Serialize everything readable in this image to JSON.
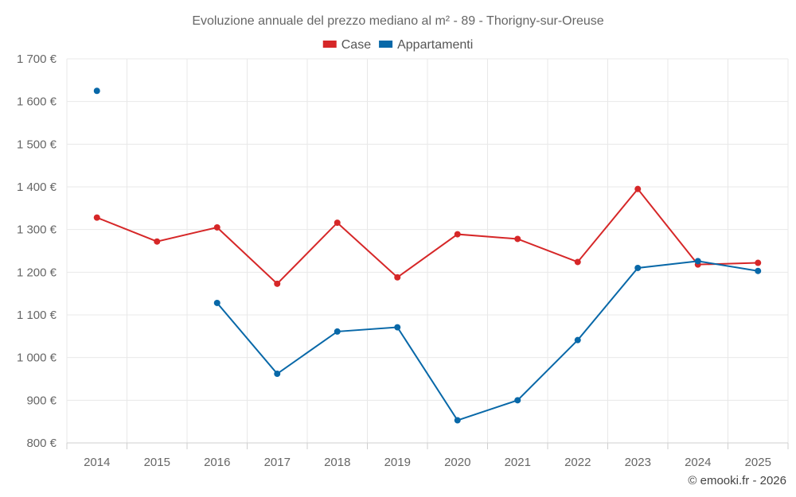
{
  "chart_data": {
    "type": "line",
    "title": "Evoluzione annuale del prezzo mediano al m² - 89 - Thorigny-sur-Oreuse",
    "categories": [
      "2014",
      "2015",
      "2016",
      "2017",
      "2018",
      "2019",
      "2020",
      "2021",
      "2022",
      "2023",
      "2024",
      "2025"
    ],
    "ylim": [
      800,
      1700
    ],
    "yticks": [
      800,
      900,
      1000,
      1100,
      1200,
      1300,
      1400,
      1500,
      1600,
      1700
    ],
    "ytick_labels": [
      "800 €",
      "900 €",
      "1 000 €",
      "1 100 €",
      "1 200 €",
      "1 300 €",
      "1 400 €",
      "1 500 €",
      "1 600 €",
      "1 700 €"
    ],
    "legend_position": "top-center",
    "grid": true,
    "series": [
      {
        "name": "Case",
        "color": "#d62728",
        "values": [
          1328,
          1272,
          1305,
          1173,
          1316,
          1188,
          1289,
          1278,
          1224,
          1395,
          1218,
          1222
        ]
      },
      {
        "name": "Appartamenti",
        "color": "#0868a8",
        "values": [
          1625,
          null,
          1128,
          962,
          1061,
          1071,
          853,
          900,
          1041,
          1210,
          1226,
          1203
        ]
      }
    ]
  },
  "credit": "© emooki.fr - 2026"
}
